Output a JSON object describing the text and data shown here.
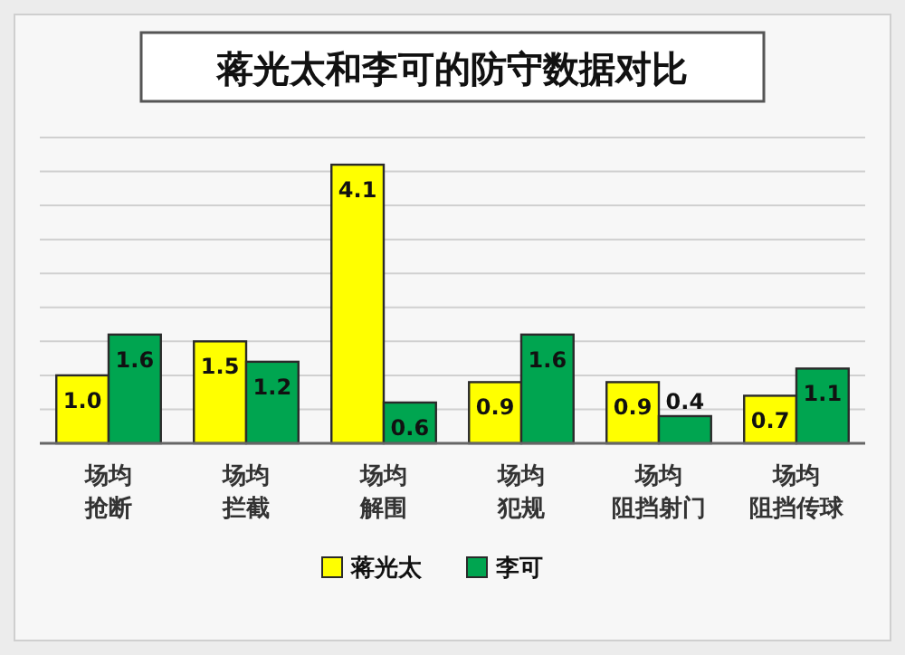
{
  "chart_data": {
    "type": "bar",
    "title": "蒋光太和李可的防守数据对比",
    "categories": [
      "场均抢断",
      "场均拦截",
      "场均解围",
      "场均犯规",
      "场均阻挡射门",
      "场均阻挡传球"
    ],
    "series": [
      {
        "name": "蒋光太",
        "color": "#ffff00",
        "values": [
          1.0,
          1.5,
          4.1,
          0.9,
          0.9,
          0.7
        ],
        "value_labels": [
          "1.0",
          "1.5",
          "4.1",
          "0.9",
          "0.9",
          "0.7"
        ]
      },
      {
        "name": "李可",
        "color": "#00a550",
        "values": [
          1.6,
          1.2,
          0.6,
          1.6,
          0.4,
          1.1
        ],
        "value_labels": [
          "1.6",
          "1.2",
          "0.6",
          "1.6",
          "0.4",
          "1.1"
        ]
      }
    ],
    "ylim": [
      0,
      4.5
    ],
    "yticks": [
      {
        "value": 0,
        "label": null
      },
      {
        "value": 0.5,
        "label": null
      },
      {
        "value": 1,
        "label": null
      },
      {
        "value": 1.5,
        "label": null
      },
      {
        "value": 2,
        "label": null
      },
      {
        "value": 2.5,
        "label": null
      },
      {
        "value": 3,
        "label": null
      },
      {
        "value": 3.5,
        "label": null
      },
      {
        "value": 4,
        "label": null
      },
      {
        "value": 4.5,
        "label": null
      }
    ],
    "grid": "y",
    "legend": "bottom"
  }
}
